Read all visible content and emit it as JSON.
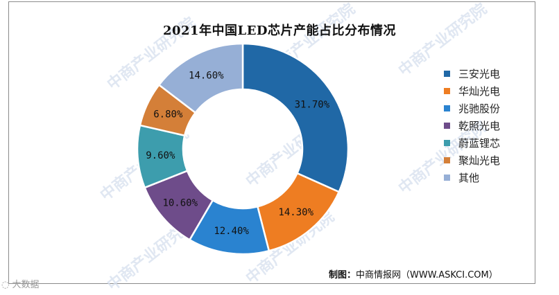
{
  "chart_data": {
    "type": "pie",
    "donut": true,
    "title": "2021年中国LED芯片产能占比分布情况",
    "slices": [
      {
        "label": "三安光电",
        "value": 31.7,
        "display": "31.70%",
        "color": "#2068a6"
      },
      {
        "label": "华灿光电",
        "value": 14.3,
        "display": "14.30%",
        "color": "#ee7d22"
      },
      {
        "label": "兆驰股份",
        "value": 12.4,
        "display": "12.40%",
        "color": "#2a83d0"
      },
      {
        "label": "乾照光电",
        "value": 10.6,
        "display": "10.60%",
        "color": "#6e4c8a"
      },
      {
        "label": "蔚蓝锂芯",
        "value": 9.6,
        "display": "9.60%",
        "color": "#3d9dad"
      },
      {
        "label": "聚灿光电",
        "value": 6.8,
        "display": "6.80%",
        "color": "#d47f38"
      },
      {
        "label": "其他",
        "value": 14.6,
        "display": "14.60%",
        "color": "#96afd6"
      }
    ],
    "legend_position": "right"
  },
  "credit": {
    "label": "制图：",
    "text": "中商情报网（WWW.ASKCI.COM）"
  },
  "watermark_text": "中商产业研究院",
  "bottom_logo": "大数据"
}
